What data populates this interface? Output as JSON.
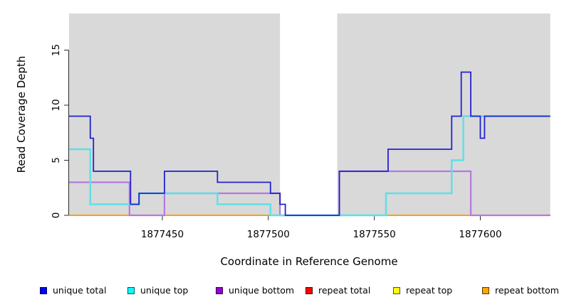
{
  "figure": {
    "x_axis_title": "Coordinate in Reference Genome",
    "y_axis_title": "Read Coverage Depth"
  },
  "chart_data": {
    "type": "line",
    "subtype": "step-after-coverage-plot",
    "title": "",
    "xlabel": "Coordinate in Reference Genome",
    "ylabel": "Read Coverage Depth",
    "x_domain": [
      1877406,
      1877633
    ],
    "y_domain": [
      0,
      18.3
    ],
    "x_ticks": [
      1877450,
      1877500,
      1877550,
      1877600
    ],
    "y_ticks": [
      0,
      5,
      10,
      15
    ],
    "grid": false,
    "background_color": "#d9d9d9",
    "background_regions": [
      [
        1877406,
        1877505.5
      ],
      [
        1877532.5,
        1877633
      ]
    ],
    "axis_color": "#2b2b2b",
    "series": [
      {
        "name": "repeat total",
        "legend_color": "#ff0000",
        "line_color": "#e8453c",
        "width": 1.4,
        "steps": [
          [
            1877406,
            0
          ]
        ]
      },
      {
        "name": "repeat top",
        "legend_color": "#ffff00",
        "line_color": "#f5e339",
        "width": 1.4,
        "steps": [
          [
            1877406,
            0
          ]
        ]
      },
      {
        "name": "repeat bottom",
        "legend_color": "#ffa500",
        "line_color": "#ff9f1a",
        "width": 2,
        "steps": [
          [
            1877406,
            0
          ]
        ]
      },
      {
        "name": "unique bottom",
        "legend_color": "#9400d3",
        "line_color": "#b678e0",
        "width": 2.2,
        "steps": [
          [
            1877406,
            3
          ],
          [
            1877434.5,
            0
          ],
          [
            1877451,
            2
          ],
          [
            1877505.5,
            0
          ],
          [
            1877533.5,
            4
          ],
          [
            1877595.5,
            0
          ]
        ]
      },
      {
        "name": "unique top",
        "legend_color": "#00ffff",
        "line_color": "#5ee0e8",
        "width": 2.4,
        "steps": [
          [
            1877406,
            6
          ],
          [
            1877416,
            1
          ],
          [
            1877439,
            2
          ],
          [
            1877476,
            1
          ],
          [
            1877501,
            0
          ],
          [
            1877555.5,
            2
          ],
          [
            1877586.5,
            5
          ],
          [
            1877592,
            9
          ]
        ]
      },
      {
        "name": "unique total",
        "legend_color": "#0000ff",
        "line_color": "#2222cf",
        "width": 1.8,
        "steps": [
          [
            1877406,
            9
          ],
          [
            1877416,
            7
          ],
          [
            1877417.5,
            4
          ],
          [
            1877435,
            1
          ],
          [
            1877439,
            2
          ],
          [
            1877451,
            4
          ],
          [
            1877476,
            3
          ],
          [
            1877501,
            2
          ],
          [
            1877505.5,
            1
          ],
          [
            1877508,
            0
          ],
          [
            1877533.5,
            4
          ],
          [
            1877556.5,
            6
          ],
          [
            1877586.5,
            9
          ],
          [
            1877591,
            13
          ],
          [
            1877595.5,
            9
          ],
          [
            1877600,
            7
          ],
          [
            1877602,
            9
          ]
        ]
      }
    ],
    "legend_position": "bottom"
  },
  "legend": {
    "items": [
      {
        "label": "unique total",
        "color": "#0000ff"
      },
      {
        "label": "unique top",
        "color": "#00ffff"
      },
      {
        "label": "unique bottom",
        "color": "#9400d3"
      },
      {
        "label": "repeat total",
        "color": "#ff0000"
      },
      {
        "label": "repeat top",
        "color": "#ffff00"
      },
      {
        "label": "repeat bottom",
        "color": "#ffa500"
      }
    ]
  }
}
